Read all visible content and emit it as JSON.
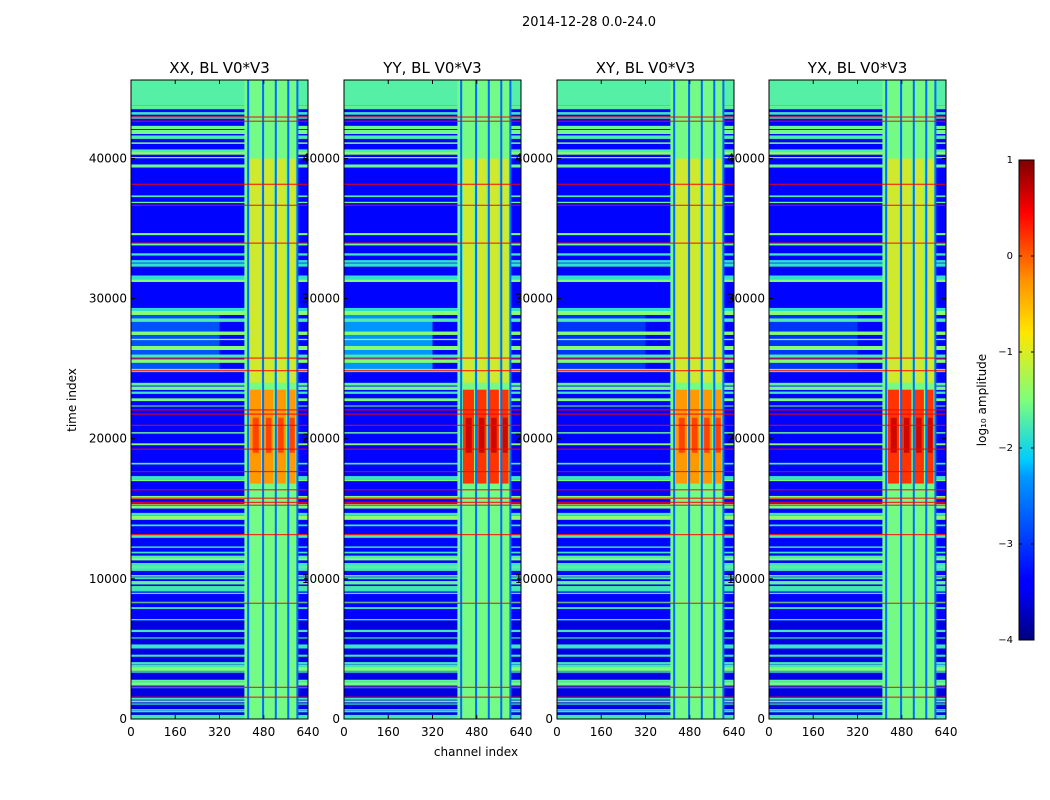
{
  "figure_title": "2014-12-28 0.0-24.0",
  "chart_data": {
    "type": "heatmap",
    "suptitle": "2014-12-28 0.0-24.0",
    "xlabel": "channel index",
    "ylabel": "time index",
    "xlim": [
      0,
      640
    ],
    "ylim": [
      0,
      45600
    ],
    "xticks": [
      0,
      160,
      320,
      480,
      640
    ],
    "yticks": [
      0,
      10000,
      20000,
      30000,
      40000
    ],
    "panels": [
      {
        "id": "xx",
        "title": "XX, BL V0*V3"
      },
      {
        "id": "yy",
        "title": "YY, BL V0*V3"
      },
      {
        "id": "xy",
        "title": "XY, BL V0*V3"
      },
      {
        "id": "yx",
        "title": "YX, BL V0*V3"
      }
    ],
    "colorbar": {
      "label": "log₁₀ amplitude",
      "range": [
        -4,
        1
      ],
      "ticks": [
        1,
        0,
        -1,
        -2,
        -3,
        -4
      ],
      "tick_labels": [
        "1",
        "0",
        "−1",
        "−2",
        "−3",
        "−4"
      ],
      "colormap": "jet"
    }
  }
}
